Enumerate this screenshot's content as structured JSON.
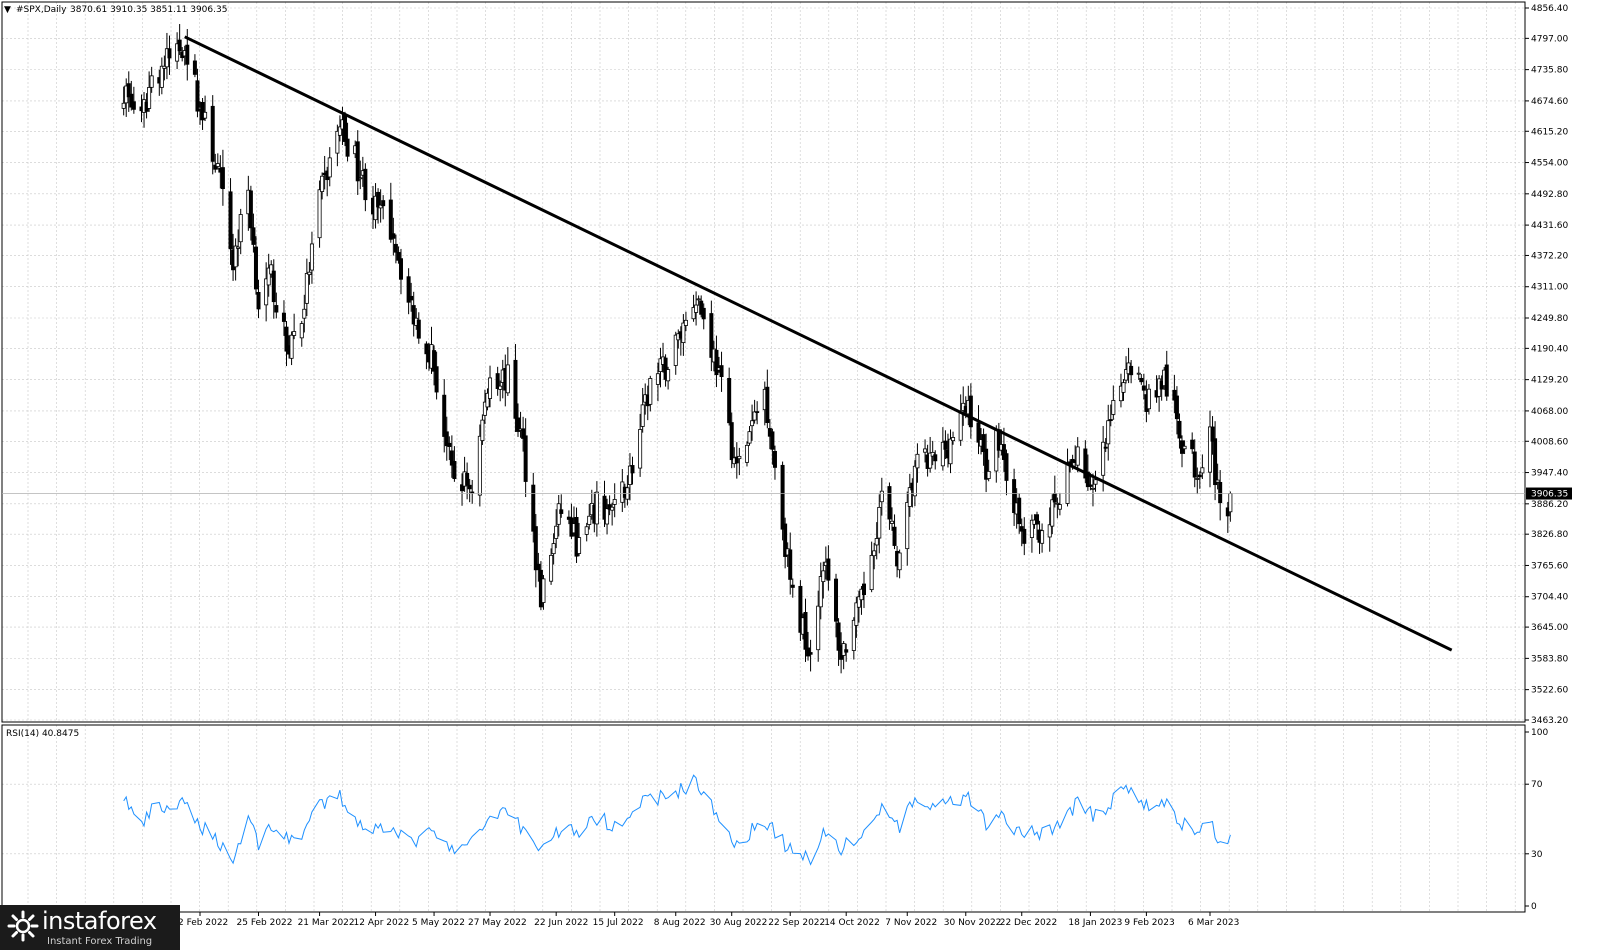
{
  "header": {
    "symbol": "#SPX,Daily",
    "ohlc": "3870.61 3910.35 3851.11 3906.35"
  },
  "rsi_header": "RSI(14) 40.8475",
  "current_price_label": "3906.35",
  "price_ticks": [
    "4856.40",
    "4797.00",
    "4735.80",
    "4674.60",
    "4615.20",
    "4554.00",
    "4492.80",
    "4431.60",
    "4372.20",
    "4311.00",
    "4249.80",
    "4190.40",
    "4129.20",
    "4068.00",
    "4008.60",
    "3947.40",
    "3886.20",
    "3826.80",
    "3765.60",
    "3704.40",
    "3645.00",
    "3583.80",
    "3522.60",
    "3463.20"
  ],
  "rsi_ticks": [
    "100",
    "70",
    "30",
    "0"
  ],
  "date_ticks": [
    "2 Feb 2022",
    "25 Feb 2022",
    "21 Mar 2022",
    "12 Apr 2022",
    "5 May 2022",
    "27 May 2022",
    "22 Jun 2022",
    "15 Jul 2022",
    "8 Aug 2022",
    "30 Aug 2022",
    "22 Sep 2022",
    "14 Oct 2022",
    "7 Nov 2022",
    "30 Nov 2022",
    "22 Dec 2022",
    "18 Jan 2023",
    "9 Feb 2023",
    "6 Mar 2023"
  ],
  "logo": {
    "name": "instaforex",
    "tagline": "Instant Forex Trading"
  },
  "colors": {
    "candles": "#000000",
    "rsi_line": "#1e90ff",
    "trendline": "#000000",
    "grid": "#c8c8c8"
  },
  "chart_data": [
    {
      "type": "candlestick",
      "title": "#SPX,Daily",
      "ylim": [
        3463.2,
        4856.4
      ],
      "ohlc_last": {
        "open": 3870.61,
        "high": 3910.35,
        "low": 3851.11,
        "close": 3906.35
      },
      "close_anchors": [
        [
          "2022-01-03",
          4700
        ],
        [
          "2022-01-10",
          4630
        ],
        [
          "2022-01-14",
          4720
        ],
        [
          "2022-01-27",
          4790
        ],
        [
          "2022-02-01",
          4680
        ],
        [
          "2022-02-09",
          4540
        ],
        [
          "2022-02-15",
          4360
        ],
        [
          "2022-02-21",
          4500
        ],
        [
          "2022-02-25",
          4280
        ],
        [
          "2022-03-02",
          4330
        ],
        [
          "2022-03-08",
          4190
        ],
        [
          "2022-03-14",
          4250
        ],
        [
          "2022-03-21",
          4480
        ],
        [
          "2022-03-29",
          4630
        ],
        [
          "2022-04-04",
          4560
        ],
        [
          "2022-04-11",
          4470
        ],
        [
          "2022-04-19",
          4420
        ],
        [
          "2022-04-25",
          4280
        ],
        [
          "2022-05-04",
          4180
        ],
        [
          "2022-05-12",
          3940
        ],
        [
          "2022-05-20",
          3920
        ],
        [
          "2022-05-27",
          4140
        ],
        [
          "2022-06-03",
          4130
        ],
        [
          "2022-06-09",
          4000
        ],
        [
          "2022-06-16",
          3700
        ],
        [
          "2022-06-24",
          3880
        ],
        [
          "2022-07-01",
          3800
        ],
        [
          "2022-07-08",
          3880
        ],
        [
          "2022-07-15",
          3870
        ],
        [
          "2022-07-22",
          3960
        ],
        [
          "2022-07-29",
          4120
        ],
        [
          "2022-08-05",
          4160
        ],
        [
          "2022-08-16",
          4300
        ],
        [
          "2022-08-24",
          4160
        ],
        [
          "2022-09-01",
          3950
        ],
        [
          "2022-09-12",
          4110
        ],
        [
          "2022-09-23",
          3700
        ],
        [
          "2022-09-30",
          3600
        ],
        [
          "2022-10-05",
          3780
        ],
        [
          "2022-10-12",
          3590
        ],
        [
          "2022-10-20",
          3690
        ],
        [
          "2022-10-28",
          3900
        ],
        [
          "2022-11-04",
          3770
        ],
        [
          "2022-11-10",
          3960
        ],
        [
          "2022-11-18",
          3970
        ],
        [
          "2022-11-25",
          4020
        ],
        [
          "2022-12-01",
          4080
        ],
        [
          "2022-12-08",
          3960
        ],
        [
          "2022-12-13",
          4020
        ],
        [
          "2022-12-22",
          3820
        ],
        [
          "2022-12-30",
          3840
        ],
        [
          "2023-01-06",
          3890
        ],
        [
          "2023-01-13",
          4000
        ],
        [
          "2023-01-19",
          3900
        ],
        [
          "2023-01-25",
          4020
        ],
        [
          "2023-02-02",
          4180
        ],
        [
          "2023-02-09",
          4090
        ],
        [
          "2023-02-16",
          4130
        ],
        [
          "2023-02-23",
          4010
        ],
        [
          "2023-03-01",
          3950
        ],
        [
          "2023-03-06",
          4040
        ],
        [
          "2023-03-10",
          3860
        ],
        [
          "2023-03-13",
          3855
        ],
        [
          "2023-03-14",
          3906.35
        ]
      ],
      "trendline": {
        "start": [
          "2022-01-27",
          4800
        ],
        "end": [
          "2023-06-09",
          3600
        ]
      },
      "last_price_line": 3906.35
    },
    {
      "type": "line",
      "title": "RSI(14) 40.8475",
      "ylim": [
        0,
        100
      ],
      "levels": [
        70,
        30
      ],
      "last_value": 40.8475,
      "anchors": [
        [
          "2022-01-03",
          63
        ],
        [
          "2022-01-10",
          45
        ],
        [
          "2022-01-14",
          55
        ],
        [
          "2022-01-27",
          58
        ],
        [
          "2022-02-01",
          48
        ],
        [
          "2022-02-09",
          38
        ],
        [
          "2022-02-15",
          26
        ],
        [
          "2022-02-21",
          52
        ],
        [
          "2022-02-25",
          36
        ],
        [
          "2022-03-02",
          47
        ],
        [
          "2022-03-08",
          38
        ],
        [
          "2022-03-14",
          42
        ],
        [
          "2022-03-21",
          57
        ],
        [
          "2022-03-29",
          63
        ],
        [
          "2022-04-04",
          50
        ],
        [
          "2022-04-11",
          44
        ],
        [
          "2022-04-19",
          47
        ],
        [
          "2022-04-25",
          36
        ],
        [
          "2022-05-04",
          42
        ],
        [
          "2022-05-12",
          32
        ],
        [
          "2022-05-20",
          36
        ],
        [
          "2022-05-27",
          52
        ],
        [
          "2022-06-03",
          56
        ],
        [
          "2022-06-09",
          44
        ],
        [
          "2022-06-16",
          33
        ],
        [
          "2022-06-24",
          45
        ],
        [
          "2022-07-01",
          43
        ],
        [
          "2022-07-08",
          50
        ],
        [
          "2022-07-15",
          47
        ],
        [
          "2022-07-22",
          55
        ],
        [
          "2022-07-29",
          62
        ],
        [
          "2022-08-05",
          63
        ],
        [
          "2022-08-16",
          72
        ],
        [
          "2022-08-24",
          52
        ],
        [
          "2022-09-01",
          36
        ],
        [
          "2022-09-12",
          50
        ],
        [
          "2022-09-23",
          30
        ],
        [
          "2022-09-30",
          28
        ],
        [
          "2022-10-05",
          43
        ],
        [
          "2022-10-12",
          33
        ],
        [
          "2022-10-20",
          40
        ],
        [
          "2022-10-28",
          56
        ],
        [
          "2022-11-04",
          46
        ],
        [
          "2022-11-10",
          60
        ],
        [
          "2022-11-18",
          57
        ],
        [
          "2022-11-25",
          59
        ],
        [
          "2022-12-01",
          61
        ],
        [
          "2022-12-08",
          48
        ],
        [
          "2022-12-13",
          52
        ],
        [
          "2022-12-22",
          41
        ],
        [
          "2022-12-30",
          43
        ],
        [
          "2023-01-06",
          47
        ],
        [
          "2023-01-13",
          60
        ],
        [
          "2023-01-19",
          52
        ],
        [
          "2023-01-25",
          58
        ],
        [
          "2023-02-02",
          68
        ],
        [
          "2023-02-09",
          57
        ],
        [
          "2023-02-16",
          60
        ],
        [
          "2023-02-23",
          47
        ],
        [
          "2023-03-01",
          43
        ],
        [
          "2023-03-06",
          50
        ],
        [
          "2023-03-10",
          34
        ],
        [
          "2023-03-13",
          37
        ],
        [
          "2023-03-14",
          40.8475
        ]
      ]
    }
  ]
}
